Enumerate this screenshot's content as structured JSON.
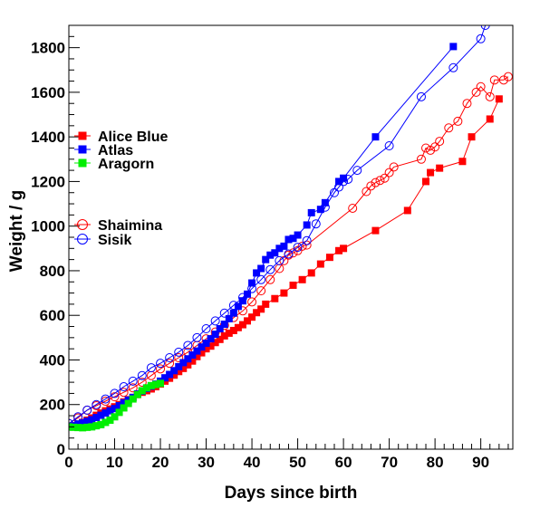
{
  "chart_data": {
    "type": "scatter",
    "xlabel": "Days since birth",
    "ylabel": "Weight / g",
    "xlim": [
      0,
      97
    ],
    "ylim": [
      0,
      1900
    ],
    "x_ticks": [
      0,
      10,
      20,
      30,
      40,
      50,
      60,
      70,
      80,
      90
    ],
    "y_ticks": [
      0,
      200,
      400,
      600,
      800,
      1000,
      1200,
      1400,
      1600,
      1800
    ],
    "grid": false,
    "legend_position": "left",
    "series": [
      {
        "name": "Alice Blue",
        "color": "#ff0000",
        "marker": "filled-square",
        "line": true,
        "points": [
          [
            0,
            100
          ],
          [
            1,
            105
          ],
          [
            2,
            112
          ],
          [
            3,
            120
          ],
          [
            4,
            130
          ],
          [
            5,
            140
          ],
          [
            6,
            152
          ],
          [
            7,
            162
          ],
          [
            8,
            172
          ],
          [
            9,
            180
          ],
          [
            10,
            190
          ],
          [
            11,
            200
          ],
          [
            12,
            212
          ],
          [
            13,
            222
          ],
          [
            14,
            232
          ],
          [
            15,
            245
          ],
          [
            16,
            255
          ],
          [
            17,
            262
          ],
          [
            18,
            270
          ],
          [
            19,
            280
          ],
          [
            20,
            292
          ],
          [
            21,
            305
          ],
          [
            22,
            318
          ],
          [
            23,
            332
          ],
          [
            24,
            348
          ],
          [
            25,
            362
          ],
          [
            26,
            378
          ],
          [
            27,
            395
          ],
          [
            28,
            415
          ],
          [
            29,
            432
          ],
          [
            30,
            450
          ],
          [
            31,
            462
          ],
          [
            32,
            478
          ],
          [
            33,
            492
          ],
          [
            34,
            508
          ],
          [
            35,
            520
          ],
          [
            36,
            532
          ],
          [
            37,
            545
          ],
          [
            38,
            558
          ],
          [
            39,
            575
          ],
          [
            40,
            592
          ],
          [
            41,
            612
          ],
          [
            42,
            628
          ],
          [
            43,
            650
          ],
          [
            45,
            675
          ],
          [
            47,
            700
          ],
          [
            49,
            735
          ],
          [
            51,
            760
          ],
          [
            53,
            790
          ],
          [
            55,
            830
          ],
          [
            57,
            860
          ],
          [
            59,
            890
          ],
          [
            60,
            900
          ],
          [
            67,
            980
          ],
          [
            74,
            1070
          ],
          [
            78,
            1200
          ],
          [
            79,
            1240
          ],
          [
            81,
            1260
          ],
          [
            86,
            1290
          ],
          [
            88,
            1400
          ],
          [
            92,
            1480
          ],
          [
            94,
            1570
          ]
        ]
      },
      {
        "name": "Atlas",
        "color": "#0000ff",
        "marker": "filled-square",
        "line": true,
        "points": [
          [
            0,
            100
          ],
          [
            1,
            105
          ],
          [
            2,
            112
          ],
          [
            3,
            118
          ],
          [
            4,
            125
          ],
          [
            5,
            132
          ],
          [
            6,
            142
          ],
          [
            7,
            152
          ],
          [
            8,
            162
          ],
          [
            9,
            172
          ],
          [
            10,
            182
          ],
          [
            11,
            195
          ],
          [
            12,
            208
          ],
          [
            13,
            220
          ],
          [
            14,
            232
          ],
          [
            15,
            248
          ],
          [
            16,
            260
          ],
          [
            17,
            272
          ],
          [
            18,
            282
          ],
          [
            19,
            292
          ],
          [
            20,
            305
          ],
          [
            21,
            320
          ],
          [
            22,
            335
          ],
          [
            23,
            352
          ],
          [
            24,
            370
          ],
          [
            25,
            388
          ],
          [
            26,
            405
          ],
          [
            27,
            422
          ],
          [
            28,
            440
          ],
          [
            29,
            458
          ],
          [
            30,
            475
          ],
          [
            31,
            495
          ],
          [
            32,
            515
          ],
          [
            33,
            540
          ],
          [
            34,
            560
          ],
          [
            35,
            585
          ],
          [
            36,
            610
          ],
          [
            37,
            640
          ],
          [
            38,
            665
          ],
          [
            39,
            695
          ],
          [
            40,
            745
          ],
          [
            41,
            790
          ],
          [
            42,
            810
          ],
          [
            43,
            850
          ],
          [
            44,
            870
          ],
          [
            45,
            880
          ],
          [
            46,
            900
          ],
          [
            47,
            910
          ],
          [
            48,
            940
          ],
          [
            49,
            945
          ],
          [
            50,
            960
          ],
          [
            52,
            1005
          ],
          [
            53,
            1060
          ],
          [
            55,
            1075
          ],
          [
            56,
            1105
          ],
          [
            59,
            1200
          ],
          [
            60,
            1215
          ],
          [
            67,
            1400
          ],
          [
            84,
            1805
          ]
        ]
      },
      {
        "name": "Aragorn",
        "color": "#00ee00",
        "marker": "filled-square",
        "line": true,
        "points": [
          [
            0,
            100
          ],
          [
            1,
            98
          ],
          [
            2,
            97
          ],
          [
            3,
            96
          ],
          [
            4,
            98
          ],
          [
            5,
            100
          ],
          [
            6,
            105
          ],
          [
            7,
            110
          ],
          [
            8,
            120
          ],
          [
            9,
            130
          ],
          [
            10,
            145
          ],
          [
            11,
            165
          ],
          [
            12,
            185
          ],
          [
            13,
            205
          ],
          [
            14,
            225
          ],
          [
            15,
            245
          ],
          [
            16,
            262
          ],
          [
            17,
            275
          ],
          [
            18,
            285
          ],
          [
            19,
            290
          ],
          [
            20,
            295
          ]
        ]
      },
      {
        "name": "Shaimina",
        "color": "#ff0000",
        "marker": "open-circle",
        "line": true,
        "points": [
          [
            0,
            115
          ],
          [
            2,
            140
          ],
          [
            4,
            175
          ],
          [
            6,
            195
          ],
          [
            8,
            215
          ],
          [
            10,
            235
          ],
          [
            12,
            255
          ],
          [
            14,
            275
          ],
          [
            16,
            300
          ],
          [
            18,
            330
          ],
          [
            20,
            360
          ],
          [
            22,
            385
          ],
          [
            24,
            410
          ],
          [
            26,
            435
          ],
          [
            28,
            465
          ],
          [
            30,
            495
          ],
          [
            32,
            525
          ],
          [
            34,
            555
          ],
          [
            36,
            590
          ],
          [
            38,
            620
          ],
          [
            40,
            660
          ],
          [
            42,
            710
          ],
          [
            44,
            760
          ],
          [
            46,
            810
          ],
          [
            47,
            845
          ],
          [
            48,
            870
          ],
          [
            49,
            880
          ],
          [
            50,
            890
          ],
          [
            51,
            910
          ],
          [
            52,
            915
          ],
          [
            62,
            1080
          ],
          [
            65,
            1155
          ],
          [
            66,
            1180
          ],
          [
            67,
            1195
          ],
          [
            68,
            1205
          ],
          [
            69,
            1215
          ],
          [
            70,
            1240
          ],
          [
            71,
            1265
          ],
          [
            77,
            1300
          ],
          [
            78,
            1350
          ],
          [
            79,
            1340
          ],
          [
            80,
            1355
          ],
          [
            81,
            1380
          ],
          [
            83,
            1440
          ],
          [
            85,
            1470
          ],
          [
            87,
            1550
          ],
          [
            89,
            1600
          ],
          [
            90,
            1625
          ],
          [
            92,
            1580
          ],
          [
            93,
            1655
          ],
          [
            95,
            1655
          ],
          [
            96,
            1670
          ]
        ]
      },
      {
        "name": "Sisik",
        "color": "#0000ff",
        "marker": "open-circle",
        "line": true,
        "points": [
          [
            0,
            115
          ],
          [
            2,
            145
          ],
          [
            4,
            175
          ],
          [
            6,
            200
          ],
          [
            8,
            225
          ],
          [
            10,
            250
          ],
          [
            12,
            280
          ],
          [
            14,
            305
          ],
          [
            16,
            330
          ],
          [
            18,
            365
          ],
          [
            20,
            385
          ],
          [
            22,
            410
          ],
          [
            24,
            435
          ],
          [
            26,
            465
          ],
          [
            28,
            500
          ],
          [
            30,
            540
          ],
          [
            32,
            575
          ],
          [
            34,
            610
          ],
          [
            36,
            645
          ],
          [
            38,
            680
          ],
          [
            40,
            720
          ],
          [
            42,
            760
          ],
          [
            44,
            805
          ],
          [
            46,
            845
          ],
          [
            48,
            875
          ],
          [
            50,
            905
          ],
          [
            52,
            935
          ],
          [
            54,
            1010
          ],
          [
            56,
            1085
          ],
          [
            58,
            1150
          ],
          [
            59,
            1175
          ],
          [
            60,
            1200
          ],
          [
            61,
            1210
          ],
          [
            63,
            1250
          ],
          [
            70,
            1360
          ],
          [
            77,
            1580
          ],
          [
            84,
            1710
          ],
          [
            90,
            1840
          ],
          [
            91,
            1900
          ]
        ]
      }
    ],
    "legend_entries": [
      {
        "label": "Alice Blue",
        "color": "#ff0000",
        "marker": "filled-square"
      },
      {
        "label": "Atlas",
        "color": "#0000ff",
        "marker": "filled-square"
      },
      {
        "label": "Aragorn",
        "color": "#00ee00",
        "marker": "filled-square"
      },
      {
        "label": "Shaimina",
        "color": "#ff0000",
        "marker": "open-circle"
      },
      {
        "label": "Sisik",
        "color": "#0000ff",
        "marker": "open-circle"
      }
    ]
  }
}
